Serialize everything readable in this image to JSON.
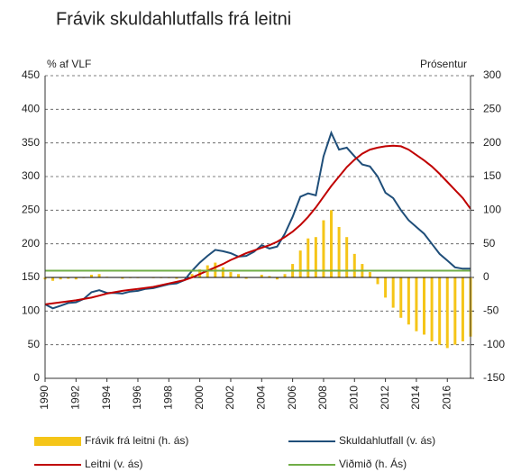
{
  "chart_data": {
    "type": "combo",
    "title": "Frávik skuldahlutfalls frá leitni",
    "y_label": "% af VLF",
    "y2_label": "Prósentur",
    "x": [
      1990,
      1990.5,
      1991,
      1991.5,
      1992,
      1992.5,
      1993,
      1993.5,
      1994,
      1994.5,
      1995,
      1995.5,
      1996,
      1996.5,
      1997,
      1997.5,
      1998,
      1998.5,
      1999,
      1999.5,
      2000,
      2000.5,
      2001,
      2001.5,
      2002,
      2002.5,
      2003,
      2003.5,
      2004,
      2004.5,
      2005,
      2005.5,
      2006,
      2006.5,
      2007,
      2007.5,
      2008,
      2008.5,
      2009,
      2009.5,
      2010,
      2010.5,
      2011,
      2011.5,
      2012,
      2012.5,
      2013,
      2013.5,
      2014,
      2014.5,
      2015,
      2015.5,
      2016,
      2016.5,
      2017,
      2017.5
    ],
    "xlim": [
      1990,
      2017.5
    ],
    "xticks": [
      1990,
      1992,
      1994,
      1996,
      1998,
      2000,
      2002,
      2004,
      2006,
      2008,
      2010,
      2012,
      2014,
      2016
    ],
    "ylim": [
      0,
      450
    ],
    "yticks": [
      0,
      50,
      100,
      150,
      200,
      250,
      300,
      350,
      400,
      450
    ],
    "y2lim": [
      -150,
      300
    ],
    "y2ticks": [
      -150,
      -100,
      -50,
      0,
      50,
      100,
      150,
      200,
      250,
      300
    ],
    "grid": true,
    "series": [
      {
        "name": "Frávik frá leitni (h. ás)",
        "type": "bar",
        "axis": "y2",
        "color": "#f5c518",
        "values": [
          -3,
          -5,
          -3,
          -2,
          -3,
          -1,
          4,
          5,
          1,
          0,
          -2,
          -1,
          -1,
          0,
          -1,
          -1,
          -1,
          -2,
          0,
          5,
          12,
          18,
          22,
          15,
          8,
          5,
          -2,
          0,
          4,
          2,
          -3,
          5,
          20,
          40,
          58,
          60,
          85,
          100,
          75,
          60,
          35,
          20,
          8,
          -10,
          -30,
          -45,
          -60,
          -70,
          -80,
          -85,
          -95,
          -100,
          -105,
          -100,
          -95,
          -88
        ]
      },
      {
        "name": "Skuldahlutfall (v. ás)",
        "type": "line",
        "axis": "y",
        "color": "#1f4e79",
        "values": [
          110,
          104,
          108,
          112,
          113,
          118,
          128,
          131,
          127,
          127,
          126,
          129,
          130,
          133,
          134,
          137,
          140,
          141,
          146,
          160,
          172,
          182,
          191,
          189,
          186,
          181,
          182,
          188,
          198,
          193,
          196,
          215,
          240,
          270,
          275,
          272,
          330,
          365,
          340,
          343,
          330,
          318,
          315,
          300,
          276,
          268,
          250,
          235,
          225,
          215,
          200,
          185,
          175,
          165,
          163,
          163
        ]
      },
      {
        "name": "Leitni (v. ás)",
        "type": "line",
        "axis": "y",
        "color": "#c00000",
        "values": [
          110,
          111.5,
          113,
          114.5,
          116,
          118,
          120,
          123,
          126,
          128,
          130,
          131.5,
          133,
          134.5,
          136,
          138.5,
          141,
          143.5,
          146,
          150,
          155,
          160,
          165,
          170,
          176,
          181,
          186,
          190,
          194,
          198,
          203,
          210,
          218,
          228,
          240,
          254,
          270,
          286,
          300,
          314,
          325,
          334,
          340,
          343,
          345,
          346,
          345,
          340,
          332,
          324,
          315,
          304,
          292,
          280,
          268,
          252
        ]
      },
      {
        "name": "Viðmið (h. Ás)",
        "type": "line",
        "axis": "y2",
        "color": "#70ad47",
        "values": [
          10,
          10,
          10,
          10,
          10,
          10,
          10,
          10,
          10,
          10,
          10,
          10,
          10,
          10,
          10,
          10,
          10,
          10,
          10,
          10,
          10,
          10,
          10,
          10,
          10,
          10,
          10,
          10,
          10,
          10,
          10,
          10,
          10,
          10,
          10,
          10,
          10,
          10,
          10,
          10,
          10,
          10,
          10,
          10,
          10,
          10,
          10,
          10,
          10,
          10,
          10,
          10,
          10,
          10,
          10,
          10
        ]
      }
    ]
  }
}
